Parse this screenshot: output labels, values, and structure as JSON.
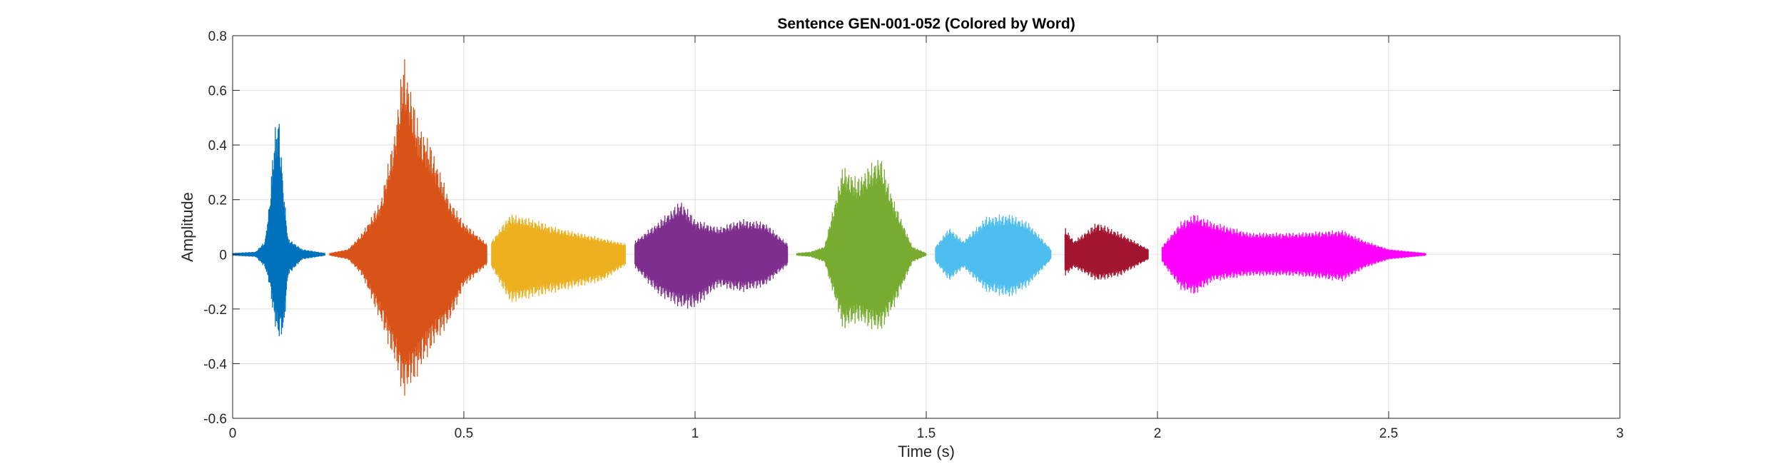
{
  "chart_data": {
    "type": "line",
    "title": "Sentence GEN-001-052 (Colored by Word)",
    "xlabel": "Time (s)",
    "ylabel": "Amplitude",
    "xlim": [
      0,
      3
    ],
    "ylim": [
      -0.6,
      0.8
    ],
    "xticks": [
      0,
      0.5,
      1,
      1.5,
      2,
      2.5,
      3
    ],
    "xtick_labels": [
      "0",
      "0.5",
      "1",
      "1.5",
      "2",
      "2.5",
      "3"
    ],
    "yticks": [
      -0.6,
      -0.4,
      -0.2,
      0,
      0.2,
      0.4,
      0.6,
      0.8
    ],
    "ytick_labels": [
      "-0.6",
      "-0.4",
      "-0.2",
      "0",
      "0.2",
      "0.4",
      "0.6",
      "0.8"
    ],
    "grid": true,
    "legend": "none",
    "series": [
      {
        "color": "#0072BD",
        "segments": [
          [
            0.0,
            0.005,
            0.005
          ],
          [
            0.05,
            0.01,
            0.01
          ],
          [
            0.07,
            0.05,
            0.05
          ],
          [
            0.08,
            0.2,
            0.12
          ],
          [
            0.09,
            0.45,
            0.25
          ],
          [
            0.1,
            0.53,
            0.32
          ],
          [
            0.11,
            0.25,
            0.3
          ],
          [
            0.12,
            0.06,
            0.08
          ],
          [
            0.15,
            0.02,
            0.02
          ],
          [
            0.2,
            0.005,
            0.005
          ]
        ]
      },
      {
        "color": "#D95319",
        "segments": [
          [
            0.21,
            0.005,
            0.005
          ],
          [
            0.25,
            0.02,
            0.02
          ],
          [
            0.28,
            0.08,
            0.08
          ],
          [
            0.32,
            0.2,
            0.25
          ],
          [
            0.35,
            0.45,
            0.4
          ],
          [
            0.37,
            0.74,
            0.53
          ],
          [
            0.4,
            0.5,
            0.45
          ],
          [
            0.43,
            0.4,
            0.35
          ],
          [
            0.47,
            0.2,
            0.25
          ],
          [
            0.5,
            0.12,
            0.12
          ],
          [
            0.55,
            0.04,
            0.04
          ]
        ]
      },
      {
        "color": "#EDB120",
        "segments": [
          [
            0.56,
            0.05,
            0.05
          ],
          [
            0.6,
            0.15,
            0.18
          ],
          [
            0.65,
            0.13,
            0.16
          ],
          [
            0.7,
            0.1,
            0.14
          ],
          [
            0.75,
            0.08,
            0.12
          ],
          [
            0.8,
            0.06,
            0.1
          ],
          [
            0.85,
            0.04,
            0.04
          ]
        ]
      },
      {
        "color": "#7E2F8E",
        "segments": [
          [
            0.87,
            0.05,
            0.05
          ],
          [
            0.92,
            0.12,
            0.15
          ],
          [
            0.97,
            0.2,
            0.2
          ],
          [
            1.0,
            0.13,
            0.2
          ],
          [
            1.05,
            0.1,
            0.12
          ],
          [
            1.1,
            0.13,
            0.14
          ],
          [
            1.15,
            0.12,
            0.12
          ],
          [
            1.2,
            0.04,
            0.04
          ]
        ]
      },
      {
        "color": "#77AC30",
        "segments": [
          [
            1.22,
            0.005,
            0.005
          ],
          [
            1.25,
            0.01,
            0.01
          ],
          [
            1.28,
            0.03,
            0.03
          ],
          [
            1.32,
            0.33,
            0.28
          ],
          [
            1.35,
            0.28,
            0.25
          ],
          [
            1.4,
            0.37,
            0.29
          ],
          [
            1.43,
            0.2,
            0.2
          ],
          [
            1.47,
            0.03,
            0.03
          ],
          [
            1.5,
            0.005,
            0.005
          ]
        ]
      },
      {
        "color": "#4DBEEE",
        "segments": [
          [
            1.52,
            0.03,
            0.03
          ],
          [
            1.55,
            0.1,
            0.1
          ],
          [
            1.58,
            0.05,
            0.05
          ],
          [
            1.63,
            0.14,
            0.14
          ],
          [
            1.68,
            0.15,
            0.16
          ],
          [
            1.72,
            0.12,
            0.12
          ],
          [
            1.77,
            0.02,
            0.02
          ]
        ]
      },
      {
        "color": "#A2142F",
        "segments": [
          [
            1.8,
            0.1,
            0.08
          ],
          [
            1.82,
            0.05,
            0.05
          ],
          [
            1.87,
            0.12,
            0.1
          ],
          [
            1.92,
            0.08,
            0.08
          ],
          [
            1.98,
            0.02,
            0.02
          ]
        ]
      },
      {
        "color": "#FF00FF",
        "segments": [
          [
            2.01,
            0.03,
            0.03
          ],
          [
            2.05,
            0.12,
            0.13
          ],
          [
            2.08,
            0.15,
            0.15
          ],
          [
            2.12,
            0.12,
            0.1
          ],
          [
            2.2,
            0.08,
            0.08
          ],
          [
            2.3,
            0.08,
            0.08
          ],
          [
            2.4,
            0.09,
            0.1
          ],
          [
            2.45,
            0.05,
            0.05
          ],
          [
            2.5,
            0.02,
            0.02
          ],
          [
            2.58,
            0.005,
            0.005
          ]
        ]
      }
    ]
  }
}
